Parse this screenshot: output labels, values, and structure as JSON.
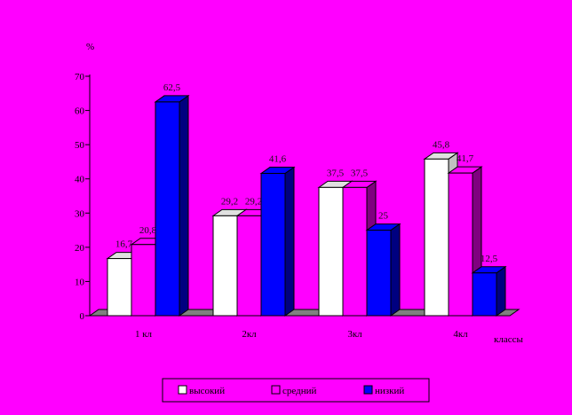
{
  "chart_data": {
    "type": "bar",
    "title": "",
    "ylabel": "%",
    "xlabel": "классы",
    "ylim": [
      0,
      70
    ],
    "yticks": [
      "0",
      "10",
      "20",
      "30",
      "40",
      "50",
      "60",
      "70"
    ],
    "categories": [
      "1 кл",
      "2кл",
      "3кл",
      "4кл"
    ],
    "series": [
      {
        "name": "высокий",
        "values": [
          16.7,
          29.2,
          37.5,
          45.8
        ],
        "labels": [
          "16,7",
          "29,2",
          "37,5",
          "45,8"
        ],
        "color": "#FFFFFF"
      },
      {
        "name": "средний",
        "values": [
          20.8,
          29.2,
          37.5,
          41.7
        ],
        "labels": [
          "20,8",
          "29,2",
          "37,5",
          "41,7"
        ],
        "color": "#FF00FF"
      },
      {
        "name": "низкий",
        "values": [
          62.5,
          41.6,
          25,
          12.5
        ],
        "labels": [
          "62,5",
          "41,6",
          "25",
          "12,5"
        ],
        "color": "#0000FF"
      }
    ],
    "grid": false,
    "legend": "bottom",
    "background": "#FF00FF"
  }
}
